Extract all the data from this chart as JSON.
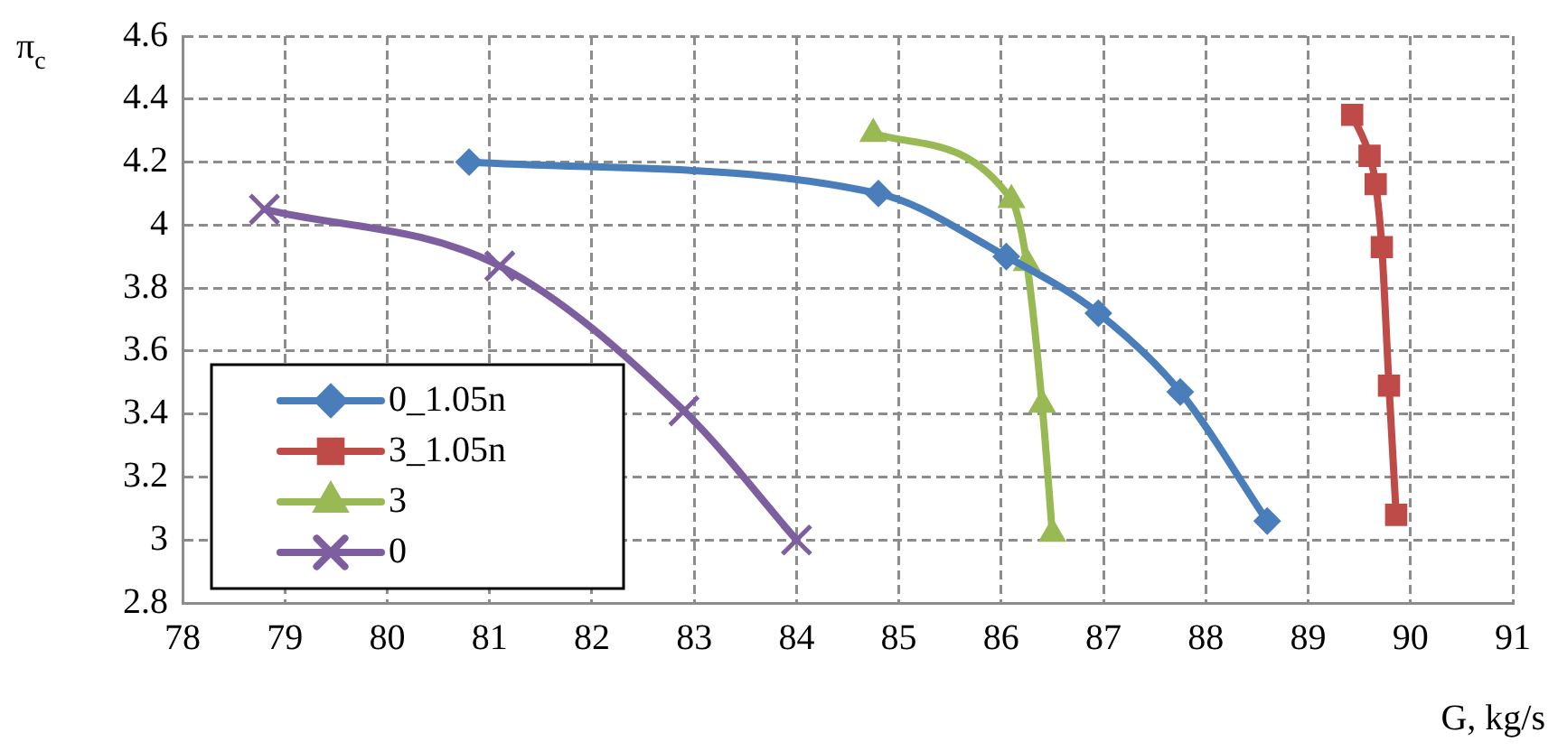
{
  "chart_data": {
    "type": "line",
    "xlabel": "G, kg/s",
    "ylabel": "π$_{c}$",
    "xlim": [
      78,
      91
    ],
    "xticks": [
      78,
      79,
      80,
      81,
      82,
      83,
      84,
      85,
      86,
      87,
      88,
      89,
      90,
      91
    ],
    "ylim": [
      2.8,
      4.6
    ],
    "yticks": [
      2.8,
      3,
      3.2,
      3.4,
      3.6,
      3.8,
      4,
      4.2,
      4.4,
      4.6
    ],
    "grid": true,
    "legend": "bottom left",
    "series": [
      {
        "name": "0_1.05n",
        "color": "#4a7ebb",
        "marker": "diamond",
        "x": [
          80.8,
          84.8,
          86.05,
          86.95,
          87.75,
          88.6
        ],
        "values": [
          4.2,
          4.1,
          3.9,
          3.72,
          3.47,
          3.06
        ]
      },
      {
        "name": "3_1.05n",
        "color": "#be4b48",
        "marker": "square",
        "x": [
          89.43,
          89.6,
          89.66,
          89.72,
          89.79,
          89.86
        ],
        "values": [
          4.35,
          4.22,
          4.13,
          3.93,
          3.49,
          3.08
        ]
      },
      {
        "name": "3",
        "color": "#98b954",
        "marker": "triangle",
        "x": [
          84.75,
          86.1,
          86.25,
          86.4,
          86.5
        ],
        "values": [
          4.29,
          4.08,
          3.88,
          3.43,
          3.02
        ]
      },
      {
        "name": "0",
        "color": "#7d5fa0",
        "marker": "cross",
        "x": [
          78.8,
          81.1,
          82.9,
          84
        ],
        "values": [
          4.05,
          3.87,
          3.41,
          3.0
        ]
      }
    ]
  }
}
